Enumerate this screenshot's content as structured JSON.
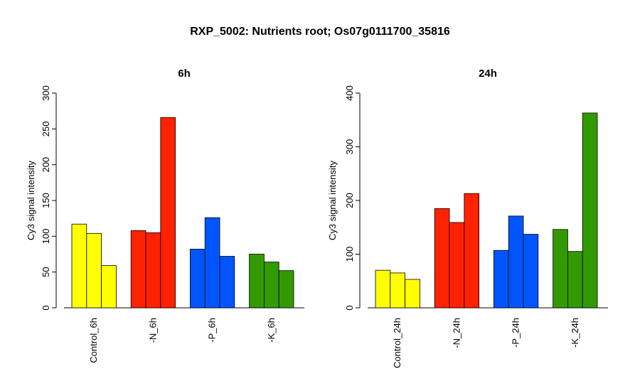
{
  "title": "RXP_5002: Nutrients root; Os07g0111700_35816",
  "chart_data": [
    {
      "type": "bar",
      "title": "6h",
      "ylabel": "Cy3 signal intensity",
      "ylim": [
        0,
        300
      ],
      "yticks": [
        0,
        50,
        100,
        150,
        200,
        250,
        300
      ],
      "categories": [
        "Control_6h",
        "-N_6h",
        "-P_6h",
        "-K_6h"
      ],
      "colors": [
        "#ffff00",
        "#ff2200",
        "#0055ff",
        "#339900"
      ],
      "values": [
        [
          117,
          104,
          59
        ],
        [
          108,
          105,
          266
        ],
        [
          82,
          126,
          72
        ],
        [
          75,
          64,
          52
        ]
      ]
    },
    {
      "type": "bar",
      "title": "24h",
      "ylabel": "Cy3 signal intensity",
      "ylim": [
        0,
        400
      ],
      "yticks": [
        0,
        100,
        200,
        300,
        400
      ],
      "categories": [
        "Control_24h",
        "-N_24h",
        "-P_24h",
        "-K_24h"
      ],
      "colors": [
        "#ffff00",
        "#ff2200",
        "#0055ff",
        "#339900"
      ],
      "values": [
        [
          70,
          65,
          53
        ],
        [
          185,
          159,
          213
        ],
        [
          107,
          171,
          137
        ],
        [
          146,
          105,
          363
        ]
      ]
    }
  ]
}
